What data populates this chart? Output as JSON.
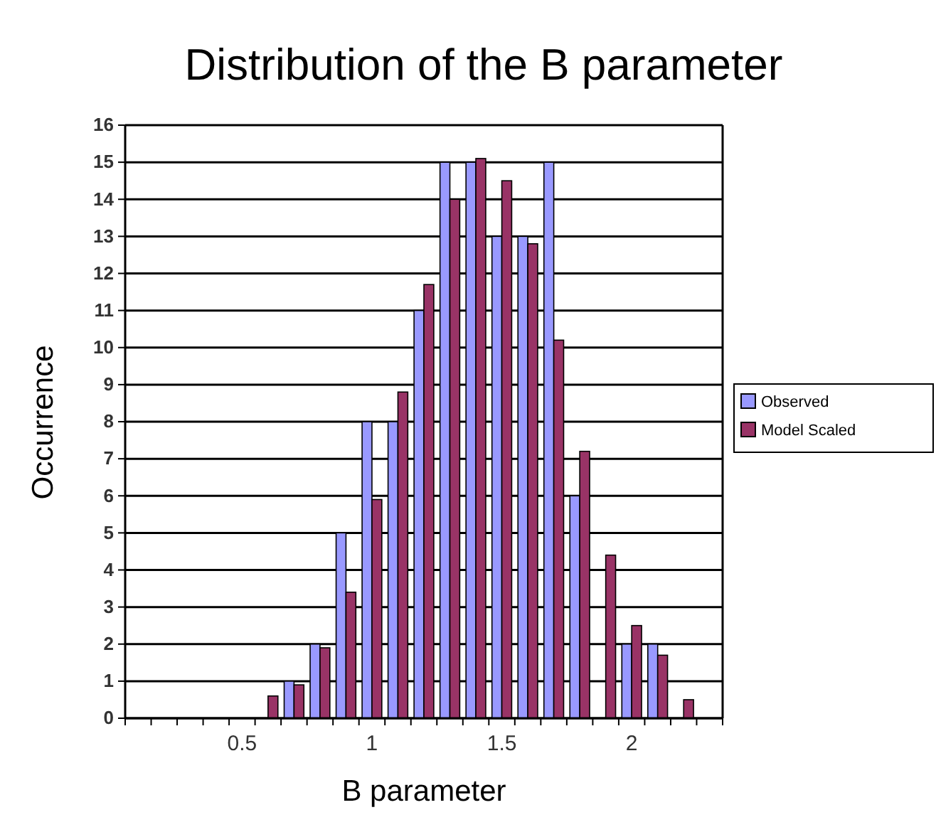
{
  "chart_data": {
    "type": "bar",
    "title": "Distribution of the B parameter",
    "xlabel": "B parameter",
    "ylabel": "Occurrence",
    "categories": [
      null,
      null,
      null,
      null,
      "0.5",
      null,
      null,
      null,
      null,
      "1",
      null,
      null,
      null,
      null,
      "1.5",
      null,
      null,
      null,
      null,
      "2",
      null,
      null,
      null
    ],
    "series": [
      {
        "name": "Observed",
        "color": "#9999ff",
        "values": [
          0,
          0,
          0,
          0,
          0,
          0,
          1,
          2,
          5,
          8,
          8,
          11,
          15,
          15,
          13,
          13,
          15,
          6,
          0,
          2,
          2,
          0,
          0
        ]
      },
      {
        "name": "Model Scaled",
        "color": "#993366",
        "values": [
          0,
          0,
          0,
          0,
          0,
          0.6,
          0.9,
          1.9,
          3.4,
          5.9,
          8.8,
          11.7,
          14,
          15.1,
          14.5,
          12.8,
          10.2,
          7.2,
          4.4,
          2.5,
          1.7,
          0.5,
          0
        ]
      }
    ],
    "ylim": [
      0,
      16
    ],
    "yticks": [
      0,
      1,
      2,
      3,
      4,
      5,
      6,
      7,
      8,
      9,
      10,
      11,
      12,
      13,
      14,
      15,
      16
    ],
    "grid": "y",
    "legend": "right"
  }
}
